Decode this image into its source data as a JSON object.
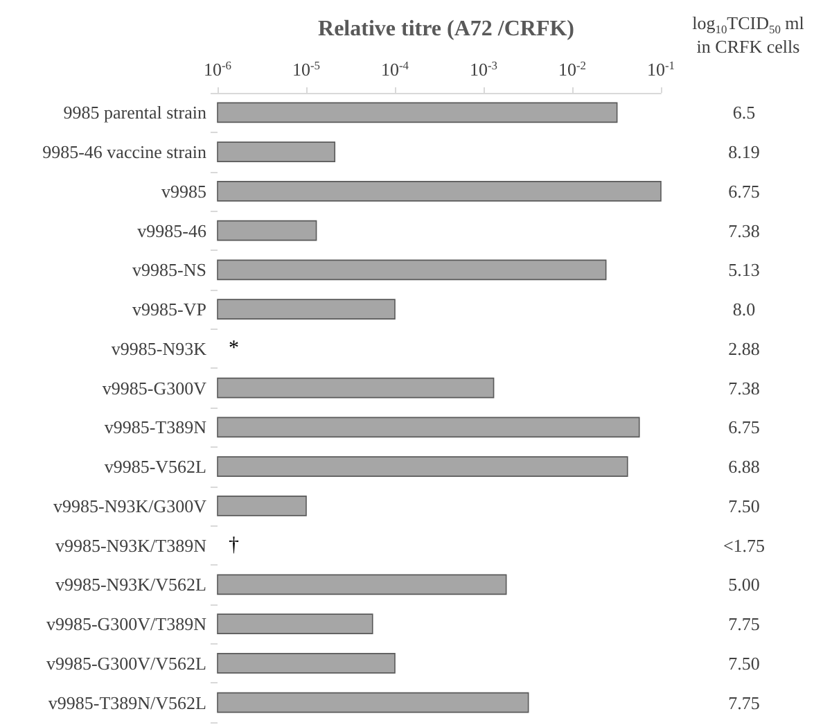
{
  "chart_data": {
    "type": "bar",
    "orientation": "horizontal",
    "title": "Relative titre (A72 /CRFK)",
    "categories": [
      "9985 parental strain",
      "9985-46 vaccine strain",
      "v9985",
      "v9985-46",
      "v9985-NS",
      "v9985-VP",
      "v9985-N93K",
      "v9985-G300V",
      "v9985-T389N",
      "v9985-V562L",
      "v9985-N93K/G300V",
      "v9985-N93K/T389N",
      "v9985-N93K/V562L",
      "v9985-G300V/T389N",
      "v9985-G300V/V562L",
      "v9985-T389N/V562L"
    ],
    "values": [
      0.032,
      2.1e-05,
      0.1,
      1.3e-05,
      0.024,
      0.0001,
      null,
      0.0013,
      0.057,
      0.042,
      1e-05,
      null,
      0.0018,
      5.6e-05,
      0.0001,
      0.0032
    ],
    "color": "#a6a6a6",
    "log": "x",
    "xlim": [
      1e-06,
      0.1
    ],
    "xticks": [
      {
        "value": 1e-06,
        "label": "10$^{-6}$"
      },
      {
        "value": 1e-05,
        "label": "10$^{-5}$"
      },
      {
        "value": 0.0001,
        "label": "10$^{-4}$"
      },
      {
        "value": 0.001,
        "label": "10$^{-3}$"
      },
      {
        "value": 0.01,
        "label": "10$^{-2}$"
      },
      {
        "value": 0.1,
        "label": "10$^{-1}$"
      }
    ],
    "grid": false,
    "annotations": [
      "log$_{10}$TCID$_{50}$ ml in CRFK cells",
      "6.5",
      "8.19",
      "6.75",
      "7.38",
      "5.13",
      "8.0",
      "2.88",
      "7.38",
      "6.75",
      "6.88",
      "7.50",
      "<1.75",
      "5.00",
      "7.75",
      "7.50",
      "7.75",
      "*",
      "†"
    ]
  }
}
